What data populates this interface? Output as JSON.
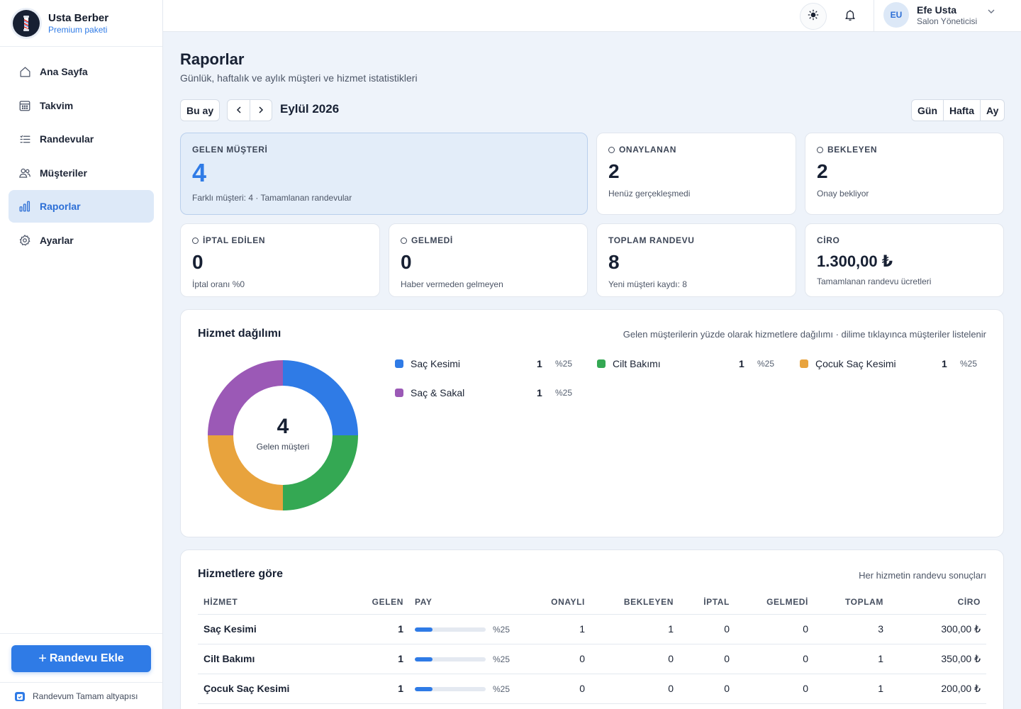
{
  "brand": {
    "name": "Usta Berber",
    "plan": "Premium paketi"
  },
  "nav": [
    {
      "label": "Ana Sayfa",
      "icon": "home-icon",
      "active": false
    },
    {
      "label": "Takvim",
      "icon": "calendar-icon",
      "active": false
    },
    {
      "label": "Randevular",
      "icon": "list-icon",
      "active": false
    },
    {
      "label": "Müşteriler",
      "icon": "users-icon",
      "active": false
    },
    {
      "label": "Raporlar",
      "icon": "chart-bars-icon",
      "active": true
    },
    {
      "label": "Ayarlar",
      "icon": "gear-icon",
      "active": false
    }
  ],
  "sidebar_footer": {
    "add_button": "Randevu Ekle",
    "powered_by": "Randevum Tamam altyapısı"
  },
  "user": {
    "initials": "EU",
    "name": "Efe Usta",
    "role": "Salon Yöneticisi"
  },
  "page": {
    "title": "Raporlar",
    "subtitle": "Günlük, haftalık ve aylık müşteri ve hizmet istatistikleri",
    "this_month": "Bu ay",
    "period": "Eylül 2026",
    "views": [
      "Gün",
      "Hafta",
      "Ay"
    ]
  },
  "stats": {
    "gelen": {
      "label": "GELEN MÜŞTERİ",
      "value": "4",
      "note": "Farklı müşteri: 4 · Tamamlanan randevular"
    },
    "onaylanan": {
      "label": "ONAYLANAN",
      "value": "2",
      "note": "Henüz gerçekleşmedi"
    },
    "bekleyen": {
      "label": "BEKLEYEN",
      "value": "2",
      "note": "Onay bekliyor"
    },
    "iptal": {
      "label": "İPTAL EDİLEN",
      "value": "0",
      "note": "İptal oranı %0"
    },
    "gelmedi": {
      "label": "GELMEDİ",
      "value": "0",
      "note": "Haber vermeden gelmeyen"
    },
    "toplam": {
      "label": "TOPLAM RANDEVU",
      "value": "8",
      "note": "Yeni müşteri kaydı: 8"
    },
    "ciro": {
      "label": "CİRO",
      "value": "1.300,00 ₺",
      "note": "Tamamlanan randevu ücretleri"
    }
  },
  "distribution": {
    "title": "Hizmet dağılımı",
    "hint": "Gelen müşterilerin yüzde olarak hizmetlere dağılımı · dilime tıklayınca müşteriler listelenir",
    "center_value": "4",
    "center_label": "Gelen müşteri"
  },
  "chart_data": {
    "type": "pie",
    "donut": true,
    "categories": [
      "Saç Kesimi",
      "Cilt Bakımı",
      "Çocuk Saç Kesimi",
      "Saç & Sakal"
    ],
    "values": [
      1,
      1,
      1,
      1
    ],
    "percent_labels": [
      "%25",
      "%25",
      "%25",
      "%25"
    ],
    "colors": [
      "#2f7be6",
      "#34a853",
      "#e8a33d",
      "#9b59b6"
    ]
  },
  "table": {
    "title": "Hizmetlere göre",
    "hint": "Her hizmetin randevu sonuçları",
    "headers": [
      "HİZMET",
      "GELEN",
      "PAY",
      "ONAYLI",
      "BEKLEYEN",
      "İPTAL",
      "GELMEDİ",
      "TOPLAM",
      "CİRO"
    ],
    "rows": [
      {
        "name": "Saç Kesimi",
        "gelen": "1",
        "pay": 0.25,
        "pay_label": "%25",
        "onayli": "1",
        "bekleyen": "1",
        "iptal": "0",
        "gelmedi": "0",
        "toplam": "3",
        "ciro": "300,00 ₺"
      },
      {
        "name": "Cilt Bakımı",
        "gelen": "1",
        "pay": 0.25,
        "pay_label": "%25",
        "onayli": "0",
        "bekleyen": "0",
        "iptal": "0",
        "gelmedi": "0",
        "toplam": "1",
        "ciro": "350,00 ₺"
      },
      {
        "name": "Çocuk Saç Kesimi",
        "gelen": "1",
        "pay": 0.25,
        "pay_label": "%25",
        "onayli": "0",
        "bekleyen": "0",
        "iptal": "0",
        "gelmedi": "0",
        "toplam": "1",
        "ciro": "200,00 ₺"
      }
    ]
  }
}
